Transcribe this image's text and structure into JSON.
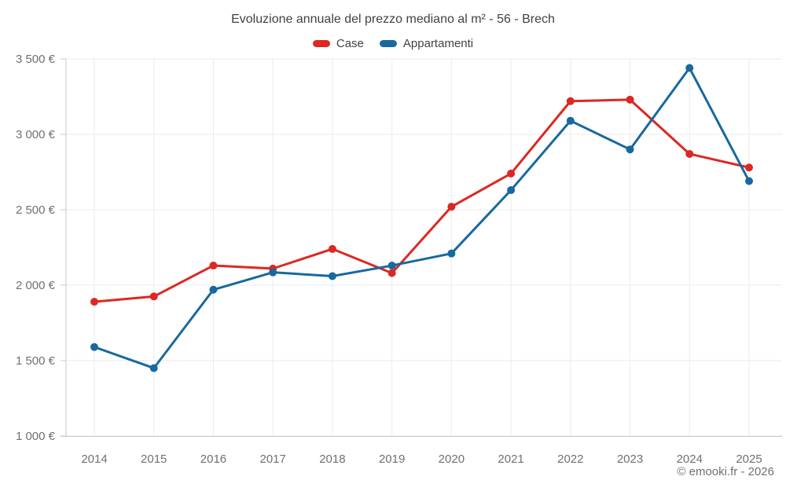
{
  "title": "Evoluzione annuale del prezzo mediano al m² - 56 - Brech",
  "footer": "© emooki.fr - 2026",
  "legend": [
    {
      "label": "Case",
      "color": "#dc2823"
    },
    {
      "label": "Appartamenti",
      "color": "#17699e"
    }
  ],
  "colors": {
    "grid": "#ebebeb",
    "axis": "#c9c9c9",
    "tick_text": "#707070"
  },
  "chart_data": {
    "type": "line",
    "title": "Evoluzione annuale del prezzo mediano al m² - 56 - Brech",
    "xlabel": "",
    "ylabel": "",
    "x": [
      "2014",
      "2015",
      "2016",
      "2017",
      "2018",
      "2019",
      "2020",
      "2021",
      "2022",
      "2023",
      "2024",
      "2025"
    ],
    "series": [
      {
        "name": "Case",
        "color": "#dc2823",
        "values": [
          1890,
          1925,
          2130,
          2110,
          2240,
          2080,
          2520,
          2740,
          3220,
          3230,
          2870,
          2780
        ]
      },
      {
        "name": "Appartamenti",
        "color": "#17699e",
        "values": [
          1590,
          1450,
          1970,
          2085,
          2060,
          2130,
          2210,
          2630,
          3090,
          2900,
          3440,
          2690
        ]
      }
    ],
    "ylim": [
      1000,
      3500
    ],
    "y_ticks": [
      {
        "value": 1000,
        "label": "1 000 €"
      },
      {
        "value": 1500,
        "label": "1 500 €"
      },
      {
        "value": 2000,
        "label": "2 000 €"
      },
      {
        "value": 2500,
        "label": "2 500 €"
      },
      {
        "value": 3000,
        "label": "3 000 €"
      },
      {
        "value": 3500,
        "label": "3 500 €"
      }
    ],
    "grid": true,
    "legend_position": "top"
  }
}
